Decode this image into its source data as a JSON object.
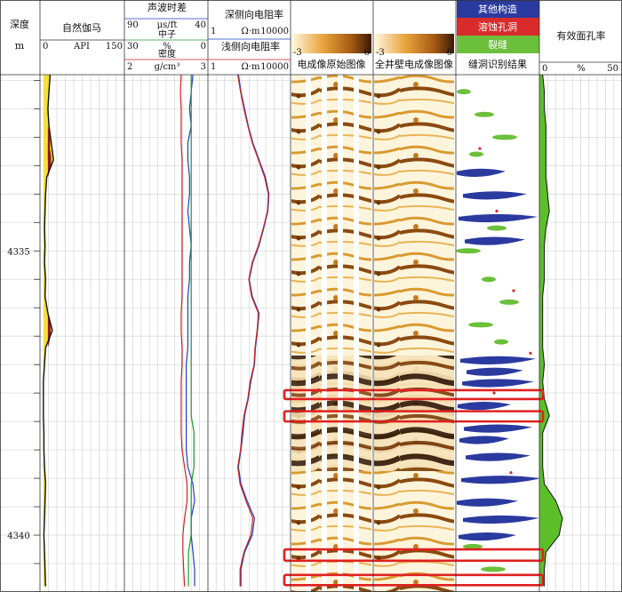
{
  "tracks": {
    "depth": {
      "title": "深度",
      "unit": "m"
    },
    "gamma": {
      "title": "自然伽马",
      "curve": {
        "name": "API",
        "min": "0",
        "max": "150"
      }
    },
    "acoustic": {
      "title": "声波时差",
      "curves": [
        {
          "name": "μs/ft",
          "min": "90",
          "max": "40",
          "color": "#1f3fbf"
        },
        {
          "name": "中子",
          "min": "",
          "max": "",
          "color": "#1a9a2a"
        },
        {
          "name": "%",
          "min": "30",
          "max": "0",
          "color": "#1a9a2a"
        },
        {
          "name": "密度",
          "min": "",
          "max": "",
          "color": "#cc2222"
        },
        {
          "name": "g/cm³",
          "min": "2",
          "max": "3",
          "color": "#cc2222"
        }
      ]
    },
    "resistivity": {
      "deep_title": "深侧向电阻率",
      "shallow_title": "浅侧向电阻率",
      "deep": {
        "unit": "Ω·m",
        "min": "1",
        "max": "10000",
        "color": "#1f3fbf"
      },
      "shallow": {
        "unit": "Ω·m",
        "min": "1",
        "max": "10000",
        "color": "#cc2222"
      }
    },
    "image_raw": {
      "caption": "电成像原始图像",
      "scale_min": "-3",
      "scale_max": "6"
    },
    "image_full": {
      "caption": "全井壁电成像图像",
      "scale_min": "-3",
      "scale_max": "6"
    },
    "interpretation": {
      "caption": "缝洞识别结果",
      "legend": [
        {
          "label": "其他构造",
          "color": "#2b3a9e"
        },
        {
          "label": "溶蚀孔洞",
          "color": "#d92b2b"
        },
        {
          "label": "裂缝",
          "color": "#6cbf3a"
        }
      ]
    },
    "porosity": {
      "title": "有效面孔率",
      "min": "0",
      "unit": "%",
      "max": "50",
      "color": "#5cbf2a"
    }
  },
  "depth_axis": {
    "top": 4331.9,
    "bottom": 4341.0,
    "labels": [
      "4335",
      "4340"
    ]
  },
  "curve_data": {
    "depth": [
      4331.9,
      4332.2,
      4332.5,
      4332.8,
      4333.1,
      4333.4,
      4333.7,
      4334.0,
      4334.3,
      4334.6,
      4334.9,
      4335.2,
      4335.5,
      4335.8,
      4336.1,
      4336.4,
      4336.7,
      4337.0,
      4337.3,
      4337.6,
      4337.9,
      4338.2,
      4338.5,
      4338.8,
      4339.1,
      4339.4,
      4339.7,
      4340.0,
      4340.3,
      4340.6,
      4340.9
    ],
    "gamma": [
      18,
      16,
      14,
      16,
      20,
      24,
      12,
      10,
      9,
      8,
      9,
      8,
      10,
      9,
      14,
      22,
      10,
      8,
      6,
      6,
      6,
      7,
      7,
      8,
      10,
      9,
      8,
      7,
      8,
      9,
      10
    ],
    "acoustic": [
      49,
      50,
      51,
      50,
      52,
      52,
      51,
      51,
      52,
      51,
      50,
      51,
      51,
      52,
      52,
      52,
      52,
      53,
      53,
      53,
      53,
      53,
      53,
      52,
      49,
      48,
      50,
      50,
      49,
      48,
      48
    ],
    "neutron": [
      6,
      6,
      6,
      6,
      6,
      6,
      6,
      6,
      6,
      6,
      6,
      6,
      6,
      6,
      6,
      6,
      6,
      6,
      6,
      6,
      6,
      5,
      5,
      5,
      6,
      6,
      6,
      6,
      7,
      7,
      7
    ],
    "density": [
      2.68,
      2.67,
      2.68,
      2.68,
      2.68,
      2.69,
      2.69,
      2.69,
      2.69,
      2.69,
      2.69,
      2.69,
      2.69,
      2.69,
      2.68,
      2.68,
      2.69,
      2.69,
      2.68,
      2.68,
      2.68,
      2.68,
      2.69,
      2.72,
      2.75,
      2.75,
      2.72,
      2.7,
      2.7,
      2.71,
      2.72
    ],
    "deep_res": [
      30,
      40,
      60,
      90,
      150,
      300,
      600,
      900,
      800,
      500,
      300,
      150,
      100,
      140,
      300,
      250,
      200,
      180,
      120,
      90,
      60,
      50,
      40,
      30,
      40,
      80,
      180,
      140,
      60,
      40,
      40
    ],
    "shallow_res": [
      28,
      38,
      55,
      85,
      140,
      280,
      550,
      850,
      760,
      480,
      280,
      140,
      95,
      130,
      280,
      240,
      190,
      170,
      110,
      85,
      55,
      45,
      38,
      28,
      36,
      70,
      150,
      120,
      55,
      36,
      36
    ],
    "porosity": [
      2,
      3,
      3,
      4,
      4,
      4,
      4,
      5,
      6,
      4,
      3,
      3,
      3,
      2,
      2,
      2,
      2,
      3,
      2,
      3,
      6,
      2,
      2,
      2,
      3,
      10,
      14,
      12,
      4,
      3,
      3
    ]
  },
  "highlight_intervals": [
    {
      "top": 4337.45,
      "bottom": 4337.6
    },
    {
      "top": 4337.82,
      "bottom": 4338.0
    },
    {
      "top": 4340.25,
      "bottom": 4340.45
    },
    {
      "top": 4340.7,
      "bottom": 4340.88
    }
  ],
  "colors": {
    "gamma_fill": "#f3e13a",
    "gamma_high_fill": "#8b1c14",
    "highlight_box": "#e02020",
    "frame": "#333333"
  }
}
